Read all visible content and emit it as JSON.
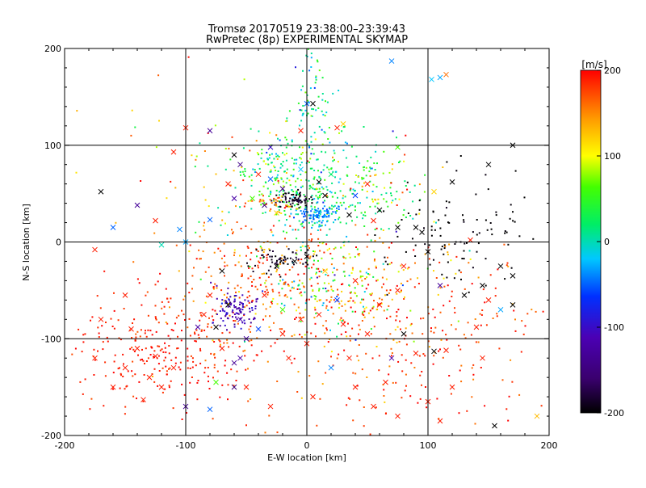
{
  "chart_data": {
    "type": "scatter",
    "title": "Tromsø 20170519 23:38:00–23:39:43",
    "subtitle": "RwPretec (8p) EXPERIMENTAL SKYMAP",
    "xlabel": "E-W location [km]",
    "ylabel": "N-S location [km]",
    "xlim": [
      -200,
      200
    ],
    "ylim": [
      -200,
      200
    ],
    "xticks": [
      -200,
      -100,
      0,
      100,
      200
    ],
    "yticks": [
      -200,
      -100,
      0,
      100,
      200
    ],
    "grid_x": [
      -100,
      0,
      100
    ],
    "grid_y": [
      -100,
      0,
      100
    ],
    "marker_types": [
      "dot",
      "x"
    ],
    "colorbar": {
      "label": "[m/s]",
      "range": [
        -200,
        200
      ],
      "ticks": [
        200,
        100,
        0,
        -100,
        -200
      ],
      "colormap": "rainbow: black-purple-blue-cyan-green-yellow-orange-red"
    },
    "clusters": [
      {
        "cx": -125,
        "cy": -115,
        "sx": 35,
        "sy": 30,
        "n": 260,
        "v": 190,
        "vs": 10
      },
      {
        "cx": -60,
        "cy": -70,
        "sx": 30,
        "sy": 45,
        "n": 120,
        "v": 160,
        "vs": 25
      },
      {
        "cx": 40,
        "cy": -55,
        "sx": 45,
        "sy": 35,
        "n": 260,
        "v": 160,
        "vs": 40
      },
      {
        "cx": 15,
        "cy": -40,
        "sx": 25,
        "sy": 25,
        "n": 140,
        "v": 60,
        "vs": 60
      },
      {
        "cx": 70,
        "cy": -130,
        "sx": 60,
        "sy": 45,
        "n": 150,
        "v": 180,
        "vs": 20
      },
      {
        "cx": 10,
        "cy": 50,
        "sx": 35,
        "sy": 25,
        "n": 330,
        "v": 20,
        "vs": 25
      },
      {
        "cx": 10,
        "cy": 28,
        "sx": 8,
        "sy": 6,
        "n": 90,
        "v": -40,
        "vs": 15
      },
      {
        "cx": 5,
        "cy": 140,
        "sx": 10,
        "sy": 40,
        "n": 90,
        "v": 10,
        "vs": 40
      },
      {
        "cx": -25,
        "cy": 80,
        "sx": 18,
        "sy": 15,
        "n": 80,
        "v": 50,
        "vs": 50
      },
      {
        "cx": -10,
        "cy": 44,
        "sx": 8,
        "sy": 4,
        "n": 70,
        "v": -190,
        "vs": 10
      },
      {
        "cx": -20,
        "cy": -18,
        "sx": 12,
        "sy": 6,
        "n": 60,
        "v": -190,
        "vs": 10
      },
      {
        "cx": -58,
        "cy": -70,
        "sx": 10,
        "sy": 10,
        "n": 100,
        "v": -110,
        "vs": 15
      },
      {
        "cx": -30,
        "cy": 42,
        "sx": 10,
        "sy": 5,
        "n": 40,
        "v": 130,
        "vs": 40
      },
      {
        "cx": 120,
        "cy": 10,
        "sx": 35,
        "sy": 30,
        "n": 100,
        "v": -200,
        "vs": 5
      },
      {
        "cx": -60,
        "cy": 60,
        "sx": 50,
        "sy": 50,
        "n": 60,
        "v": 150,
        "vs": 40
      },
      {
        "cx": 140,
        "cy": -90,
        "sx": 35,
        "sy": 50,
        "n": 50,
        "v": 180,
        "vs": 20
      },
      {
        "cx": -40,
        "cy": -25,
        "sx": 25,
        "sy": 25,
        "n": 80,
        "v": 180,
        "vs": 20
      },
      {
        "cx": 60,
        "cy": 50,
        "sx": 25,
        "sy": 30,
        "n": 60,
        "v": 100,
        "vs": 80
      }
    ],
    "x_markers": [
      {
        "x": -100,
        "y": 118,
        "v": 190
      },
      {
        "x": -80,
        "y": 115,
        "v": -130
      },
      {
        "x": -110,
        "y": 93,
        "v": 190
      },
      {
        "x": -60,
        "y": 90,
        "v": -200
      },
      {
        "x": -30,
        "y": 98,
        "v": -100
      },
      {
        "x": -170,
        "y": 52,
        "v": -200
      },
      {
        "x": -140,
        "y": 38,
        "v": -130
      },
      {
        "x": -160,
        "y": 15,
        "v": -50
      },
      {
        "x": -125,
        "y": 22,
        "v": 190
      },
      {
        "x": -105,
        "y": 13,
        "v": -40
      },
      {
        "x": -80,
        "y": 23,
        "v": -50
      },
      {
        "x": -175,
        "y": -8,
        "v": 190
      },
      {
        "x": -120,
        "y": -3,
        "v": 0
      },
      {
        "x": -100,
        "y": 0,
        "v": -30
      },
      {
        "x": -150,
        "y": -55,
        "v": 190
      },
      {
        "x": -170,
        "y": -80,
        "v": 190
      },
      {
        "x": -175,
        "y": -120,
        "v": 190
      },
      {
        "x": -145,
        "y": -90,
        "v": 190
      },
      {
        "x": -90,
        "y": -88,
        "v": -120
      },
      {
        "x": -75,
        "y": -88,
        "v": -200
      },
      {
        "x": -70,
        "y": -110,
        "v": 190
      },
      {
        "x": -100,
        "y": -170,
        "v": -130
      },
      {
        "x": -80,
        "y": -173,
        "v": -50
      },
      {
        "x": -75,
        "y": -145,
        "v": 60
      },
      {
        "x": -60,
        "y": -150,
        "v": -150
      },
      {
        "x": -50,
        "y": -150,
        "v": 190
      },
      {
        "x": -30,
        "y": -170,
        "v": 190
      },
      {
        "x": -140,
        "y": -110,
        "v": 190
      },
      {
        "x": -125,
        "y": -118,
        "v": 190
      },
      {
        "x": -150,
        "y": -130,
        "v": 190
      },
      {
        "x": -130,
        "y": -140,
        "v": 190
      },
      {
        "x": -120,
        "y": -150,
        "v": 190
      },
      {
        "x": -110,
        "y": -130,
        "v": 190
      },
      {
        "x": -160,
        "y": -150,
        "v": 190
      },
      {
        "x": -135,
        "y": -163,
        "v": 190
      },
      {
        "x": -65,
        "y": -65,
        "v": -200
      },
      {
        "x": -55,
        "y": -80,
        "v": -120
      },
      {
        "x": -50,
        "y": -100,
        "v": -120
      },
      {
        "x": -40,
        "y": -90,
        "v": -60
      },
      {
        "x": -25,
        "y": -25,
        "v": -200
      },
      {
        "x": -10,
        "y": -20,
        "v": -200
      },
      {
        "x": 0,
        "y": -15,
        "v": -200
      },
      {
        "x": 15,
        "y": -30,
        "v": 120
      },
      {
        "x": 40,
        "y": -40,
        "v": 190
      },
      {
        "x": 60,
        "y": -65,
        "v": 190
      },
      {
        "x": 75,
        "y": -50,
        "v": 190
      },
      {
        "x": 80,
        "y": -95,
        "v": -200
      },
      {
        "x": 110,
        "y": -45,
        "v": -130
      },
      {
        "x": 130,
        "y": -55,
        "v": -200
      },
      {
        "x": 150,
        "y": -60,
        "v": 190
      },
      {
        "x": 170,
        "y": -65,
        "v": -200
      },
      {
        "x": 160,
        "y": -70,
        "v": -30
      },
      {
        "x": 140,
        "y": -88,
        "v": 190
      },
      {
        "x": 105,
        "y": -113,
        "v": -200
      },
      {
        "x": 115,
        "y": -112,
        "v": 190
      },
      {
        "x": 145,
        "y": -120,
        "v": 190
      },
      {
        "x": 70,
        "y": -120,
        "v": -120
      },
      {
        "x": 100,
        "y": -165,
        "v": 190
      },
      {
        "x": 110,
        "y": -185,
        "v": 190
      },
      {
        "x": 75,
        "y": -180,
        "v": 190
      },
      {
        "x": 155,
        "y": -190,
        "v": -200
      },
      {
        "x": 190,
        "y": -180,
        "v": 130
      },
      {
        "x": 115,
        "y": 173,
        "v": 160
      },
      {
        "x": 110,
        "y": 170,
        "v": -30
      },
      {
        "x": 103,
        "y": 168,
        "v": -20
      },
      {
        "x": 70,
        "y": 187,
        "v": -40
      },
      {
        "x": 75,
        "y": 98,
        "v": 60
      },
      {
        "x": 25,
        "y": 118,
        "v": 190
      },
      {
        "x": 30,
        "y": 122,
        "v": 120
      },
      {
        "x": -5,
        "y": 115,
        "v": 190
      },
      {
        "x": 0,
        "y": 143,
        "v": -50
      },
      {
        "x": 5,
        "y": 143,
        "v": -200
      },
      {
        "x": 120,
        "y": 62,
        "v": -200
      },
      {
        "x": 150,
        "y": 80,
        "v": -200
      },
      {
        "x": 170,
        "y": 100,
        "v": -200
      },
      {
        "x": 105,
        "y": 52,
        "v": 120
      },
      {
        "x": 90,
        "y": 15,
        "v": -200
      },
      {
        "x": 95,
        "y": 10,
        "v": -200
      },
      {
        "x": 75,
        "y": 15,
        "v": -200
      },
      {
        "x": 135,
        "y": 2,
        "v": 190
      },
      {
        "x": 160,
        "y": -25,
        "v": -200
      },
      {
        "x": 170,
        "y": -35,
        "v": -200
      },
      {
        "x": 145,
        "y": -45,
        "v": -200
      },
      {
        "x": 100,
        "y": -10,
        "v": -200
      },
      {
        "x": 80,
        "y": -25,
        "v": 190
      },
      {
        "x": 35,
        "y": 28,
        "v": -200
      },
      {
        "x": 60,
        "y": 33,
        "v": -200
      },
      {
        "x": 55,
        "y": 22,
        "v": 190
      },
      {
        "x": -35,
        "y": 38,
        "v": -150
      },
      {
        "x": -25,
        "y": 30,
        "v": 120
      },
      {
        "x": -45,
        "y": 45,
        "v": 60
      },
      {
        "x": -20,
        "y": 55,
        "v": -150
      },
      {
        "x": -30,
        "y": 65,
        "v": -50
      },
      {
        "x": -5,
        "y": 75,
        "v": -20
      },
      {
        "x": 10,
        "y": 62,
        "v": -200
      },
      {
        "x": 15,
        "y": 48,
        "v": -200
      },
      {
        "x": -40,
        "y": 70,
        "v": 190
      },
      {
        "x": -60,
        "y": 45,
        "v": -120
      },
      {
        "x": -55,
        "y": 80,
        "v": -140
      },
      {
        "x": -65,
        "y": 60,
        "v": 190
      },
      {
        "x": 20,
        "y": 70,
        "v": 20
      },
      {
        "x": 40,
        "y": 48,
        "v": -60
      },
      {
        "x": 50,
        "y": 60,
        "v": 190
      },
      {
        "x": -70,
        "y": -30,
        "v": -200
      },
      {
        "x": -80,
        "y": -55,
        "v": 190
      },
      {
        "x": -85,
        "y": -75,
        "v": 190
      },
      {
        "x": -35,
        "y": -55,
        "v": 190
      },
      {
        "x": -20,
        "y": -70,
        "v": 60
      },
      {
        "x": -5,
        "y": -80,
        "v": 190
      },
      {
        "x": 10,
        "y": -75,
        "v": 190
      },
      {
        "x": 25,
        "y": -60,
        "v": -60
      },
      {
        "x": 30,
        "y": -85,
        "v": 190
      },
      {
        "x": 50,
        "y": -95,
        "v": 190
      },
      {
        "x": 20,
        "y": -130,
        "v": -40
      },
      {
        "x": 40,
        "y": -150,
        "v": 190
      },
      {
        "x": 55,
        "y": -170,
        "v": 190
      },
      {
        "x": 65,
        "y": -145,
        "v": 190
      },
      {
        "x": 120,
        "y": -150,
        "v": 190
      },
      {
        "x": -15,
        "y": -120,
        "v": 190
      },
      {
        "x": 0,
        "y": -105,
        "v": 190
      },
      {
        "x": 35,
        "y": -120,
        "v": 190
      },
      {
        "x": 90,
        "y": -115,
        "v": 190
      },
      {
        "x": 5,
        "y": -160,
        "v": 190
      },
      {
        "x": -55,
        "y": -120,
        "v": -120
      },
      {
        "x": -60,
        "y": -125,
        "v": -130
      },
      {
        "x": -20,
        "y": -95,
        "v": 190
      }
    ]
  }
}
